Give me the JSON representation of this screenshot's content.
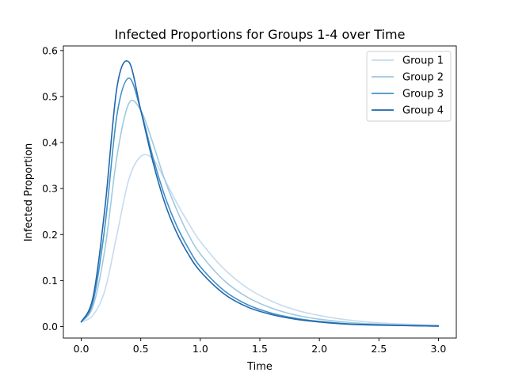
{
  "chart_data": {
    "type": "line",
    "title": "Infected Proportions for Groups 1-4 over Time",
    "xlabel": "Time",
    "ylabel": "Infected Proportion",
    "xlim": [
      -0.15,
      3.15
    ],
    "ylim": [
      -0.025,
      0.61
    ],
    "xticks": [
      0.0,
      0.5,
      1.0,
      1.5,
      2.0,
      2.5,
      3.0
    ],
    "xtick_labels": [
      "0.0",
      "0.5",
      "1.0",
      "1.5",
      "2.0",
      "2.5",
      "3.0"
    ],
    "yticks": [
      0.0,
      0.1,
      0.2,
      0.3,
      0.4,
      0.5,
      0.6
    ],
    "ytick_labels": [
      "0.0",
      "0.1",
      "0.2",
      "0.3",
      "0.4",
      "0.5",
      "0.6"
    ],
    "grid": false,
    "legend_position": "upper-right",
    "x": [
      0.0,
      0.1,
      0.2,
      0.3,
      0.4,
      0.5,
      0.6,
      0.7,
      0.8,
      0.9,
      1.0,
      1.2,
      1.4,
      1.6,
      1.8,
      2.0,
      2.25,
      2.5,
      2.75,
      3.0
    ],
    "series": [
      {
        "name": "Group 1",
        "color": "#c6dbef",
        "values": [
          0.01,
          0.025,
          0.08,
          0.2,
          0.32,
          0.37,
          0.365,
          0.32,
          0.27,
          0.225,
          0.185,
          0.125,
          0.083,
          0.055,
          0.036,
          0.024,
          0.014,
          0.008,
          0.005,
          0.003
        ]
      },
      {
        "name": "Group 2",
        "color": "#9ecae1",
        "values": [
          0.01,
          0.045,
          0.17,
          0.37,
          0.485,
          0.47,
          0.4,
          0.32,
          0.255,
          0.2,
          0.158,
          0.1,
          0.063,
          0.04,
          0.025,
          0.016,
          0.009,
          0.005,
          0.003,
          0.002
        ]
      },
      {
        "name": "Group 3",
        "color": "#4292c6",
        "values": [
          0.01,
          0.055,
          0.22,
          0.46,
          0.54,
          0.47,
          0.37,
          0.285,
          0.22,
          0.17,
          0.13,
          0.078,
          0.047,
          0.029,
          0.018,
          0.011,
          0.006,
          0.004,
          0.002,
          0.001
        ]
      },
      {
        "name": "Group 4",
        "color": "#2166ac",
        "values": [
          0.01,
          0.065,
          0.26,
          0.52,
          0.575,
          0.47,
          0.36,
          0.27,
          0.205,
          0.157,
          0.12,
          0.071,
          0.042,
          0.026,
          0.016,
          0.01,
          0.005,
          0.003,
          0.002,
          0.001
        ]
      }
    ]
  }
}
